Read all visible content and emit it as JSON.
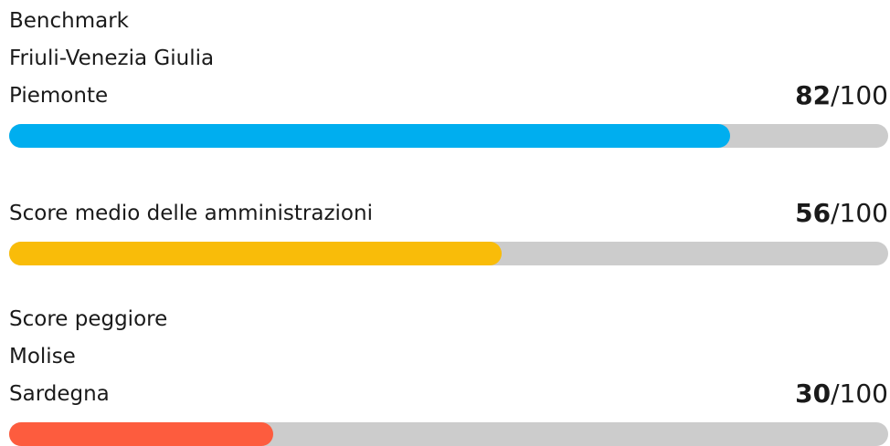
{
  "rows": [
    {
      "label_lines": [
        "Benchmark",
        "Friuli-Venezia Giulia",
        "Piemonte"
      ],
      "value": 82,
      "color": "#00aeef"
    },
    {
      "label_lines": [
        "Score medio delle amministrazioni"
      ],
      "value": 56,
      "color": "#f9bc09"
    },
    {
      "label_lines": [
        "Score peggiore",
        "Molise",
        "Sardegna"
      ],
      "value": 30,
      "color": "#fd5c3e"
    }
  ],
  "max": 100,
  "max_label": "/100",
  "track_color": "#cccccc"
}
